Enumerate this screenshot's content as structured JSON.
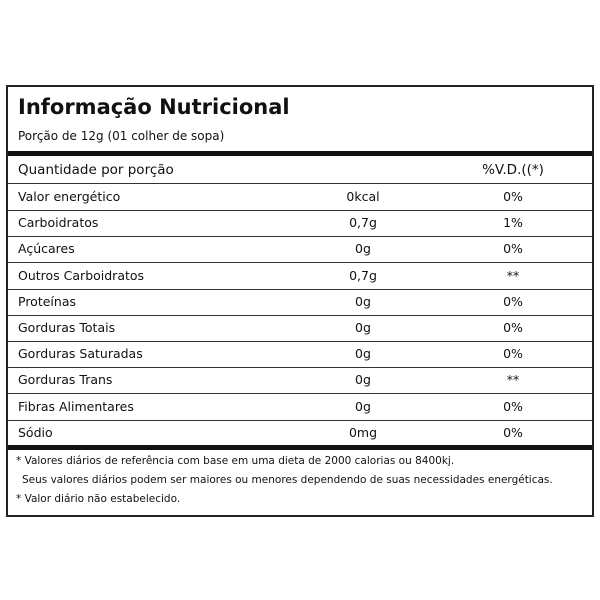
{
  "header": {
    "title": "Informação Nutricional",
    "serving": "Porção de 12g (01 colher de sopa)"
  },
  "table": {
    "columns": [
      "Quantidade por porção",
      "%V.D.((*)"
    ],
    "rows": [
      [
        "Valor energético",
        "0kcal",
        "0%"
      ],
      [
        "Carboidratos",
        "0,7g",
        "1%"
      ],
      [
        "Açúcares",
        "0g",
        "0%"
      ],
      [
        "Outros Carboidratos",
        "0,7g",
        "**"
      ],
      [
        "Proteínas",
        "0g",
        "0%"
      ],
      [
        "Gorduras Totais",
        "0g",
        "0%"
      ],
      [
        "Gorduras Saturadas",
        "0g",
        "0%"
      ],
      [
        "Gorduras Trans",
        "0g",
        "**"
      ],
      [
        "Fibras Alimentares",
        "0g",
        "0%"
      ],
      [
        "Sódio",
        "0mg",
        "0%"
      ]
    ]
  },
  "footer": {
    "notes": [
      "* Valores diários de referência com base em uma dieta de 2000 calorias ou 8400kj.",
      "Seus valores diários podem ser maiores ou menores dependendo de suas necessidades energéticas.",
      "* Valor diário não estabelecido."
    ]
  }
}
